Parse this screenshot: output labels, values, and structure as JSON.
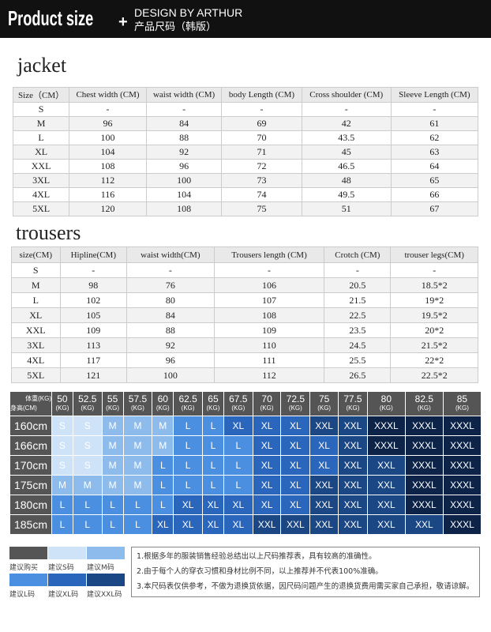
{
  "header": {
    "title": "Product size",
    "plus": "+",
    "design": "DESIGN BY ARTHUR",
    "subtitle": "产品尺码（韩版）"
  },
  "jacket": {
    "title": "jacket",
    "columns": [
      "Size（CM）",
      "Chest width (CM)",
      "waist width (CM)",
      "body Length (CM)",
      "Cross shoulder (CM)",
      "Sleeve Length (CM)"
    ],
    "rows": [
      [
        "S",
        "-",
        "-",
        "-",
        "-",
        "-"
      ],
      [
        "M",
        "96",
        "84",
        "69",
        "42",
        "61"
      ],
      [
        "L",
        "100",
        "88",
        "70",
        "43.5",
        "62"
      ],
      [
        "XL",
        "104",
        "92",
        "71",
        "45",
        "63"
      ],
      [
        "XXL",
        "108",
        "96",
        "72",
        "46.5",
        "64"
      ],
      [
        "3XL",
        "112",
        "100",
        "73",
        "48",
        "65"
      ],
      [
        "4XL",
        "116",
        "104",
        "74",
        "49.5",
        "66"
      ],
      [
        "5XL",
        "120",
        "108",
        "75",
        "51",
        "67"
      ]
    ]
  },
  "trousers": {
    "title": "trousers",
    "columns": [
      "size(CM)",
      "Hipline(CM)",
      "waist width(CM)",
      "Trousers length (CM)",
      "Crotch (CM)",
      "trouser legs(CM)"
    ],
    "rows": [
      [
        "S",
        "-",
        "-",
        "-",
        "-",
        "-"
      ],
      [
        "M",
        "98",
        "76",
        "106",
        "20.5",
        "18.5*2"
      ],
      [
        "L",
        "102",
        "80",
        "107",
        "21.5",
        "19*2"
      ],
      [
        "XL",
        "105",
        "84",
        "108",
        "22.5",
        "19.5*2"
      ],
      [
        "XXL",
        "109",
        "88",
        "109",
        "23.5",
        "20*2"
      ],
      [
        "3XL",
        "113",
        "92",
        "110",
        "24.5",
        "21.5*2"
      ],
      [
        "4XL",
        "117",
        "96",
        "111",
        "25.5",
        "22*2"
      ],
      [
        "5XL",
        "121",
        "100",
        "112",
        "26.5",
        "22.5*2"
      ]
    ]
  },
  "fit": {
    "weight_label": "体重(KG)",
    "height_label": "身高(CM)",
    "unit": "(KG)",
    "weights": [
      "50",
      "52.5",
      "55",
      "57.5",
      "60",
      "62.5",
      "65",
      "67.5",
      "70",
      "72.5",
      "75",
      "77.5",
      "80",
      "82.5",
      "85"
    ],
    "rows": [
      {
        "height": "160cm",
        "sizes": [
          "S",
          "S",
          "M",
          "M",
          "M",
          "L",
          "L",
          "XL",
          "XL",
          "XL",
          "XXL",
          "XXL",
          "XXXL",
          "XXXL",
          "XXXL"
        ]
      },
      {
        "height": "166cm",
        "sizes": [
          "S",
          "S",
          "M",
          "M",
          "M",
          "L",
          "L",
          "L",
          "XL",
          "XL",
          "XL",
          "XXL",
          "XXXL",
          "XXXL",
          "XXXL"
        ]
      },
      {
        "height": "170cm",
        "sizes": [
          "S",
          "S",
          "M",
          "M",
          "L",
          "L",
          "L",
          "L",
          "XL",
          "XL",
          "XL",
          "XXL",
          "XXL",
          "XXXL",
          "XXXL"
        ]
      },
      {
        "height": "175cm",
        "sizes": [
          "M",
          "M",
          "M",
          "M",
          "L",
          "L",
          "L",
          "L",
          "XL",
          "XL",
          "XXL",
          "XXL",
          "XXL",
          "XXXL",
          "XXXL"
        ]
      },
      {
        "height": "180cm",
        "sizes": [
          "L",
          "L",
          "L",
          "L",
          "L",
          "XL",
          "XL",
          "XL",
          "XL",
          "XL",
          "XXL",
          "XXL",
          "XXL",
          "XXXL",
          "XXXL"
        ]
      },
      {
        "height": "185cm",
        "sizes": [
          "L",
          "L",
          "L",
          "L",
          "XL",
          "XL",
          "XL",
          "XL",
          "XXL",
          "XXL",
          "XXL",
          "XXL",
          "XXL",
          "XXL",
          "XXXL"
        ]
      }
    ],
    "colors": {
      "S": "#cfe3f8",
      "M": "#8dbcec",
      "L": "#4a8fe0",
      "XL": "#2a66bb",
      "XXL": "#1b4784",
      "XXXL": "#0d2448",
      "header": "#555555"
    }
  },
  "legend": [
    {
      "label": "建议购买",
      "color": "#555555"
    },
    {
      "label": "建议S码",
      "color": "#cfe3f8"
    },
    {
      "label": "建议M码",
      "color": "#8dbcec"
    },
    {
      "label": "建议L码",
      "color": "#4a8fe0"
    },
    {
      "label": "建议XL码",
      "color": "#2a66bb"
    },
    {
      "label": "建议XXL码",
      "color": "#1b4784"
    }
  ],
  "notes": [
    "1.根据多年的服装销售经验总结出以上尺码推荐表，具有较高的准确性。",
    "2.由于每个人的穿衣习惯和身材比例不同，以上推荐并不代表100%准确。",
    "3.本尺码表仅供参考，不做为退换货依据，因尺码问题产生的退换货费用需买家自己承担，敬请谅解。"
  ]
}
